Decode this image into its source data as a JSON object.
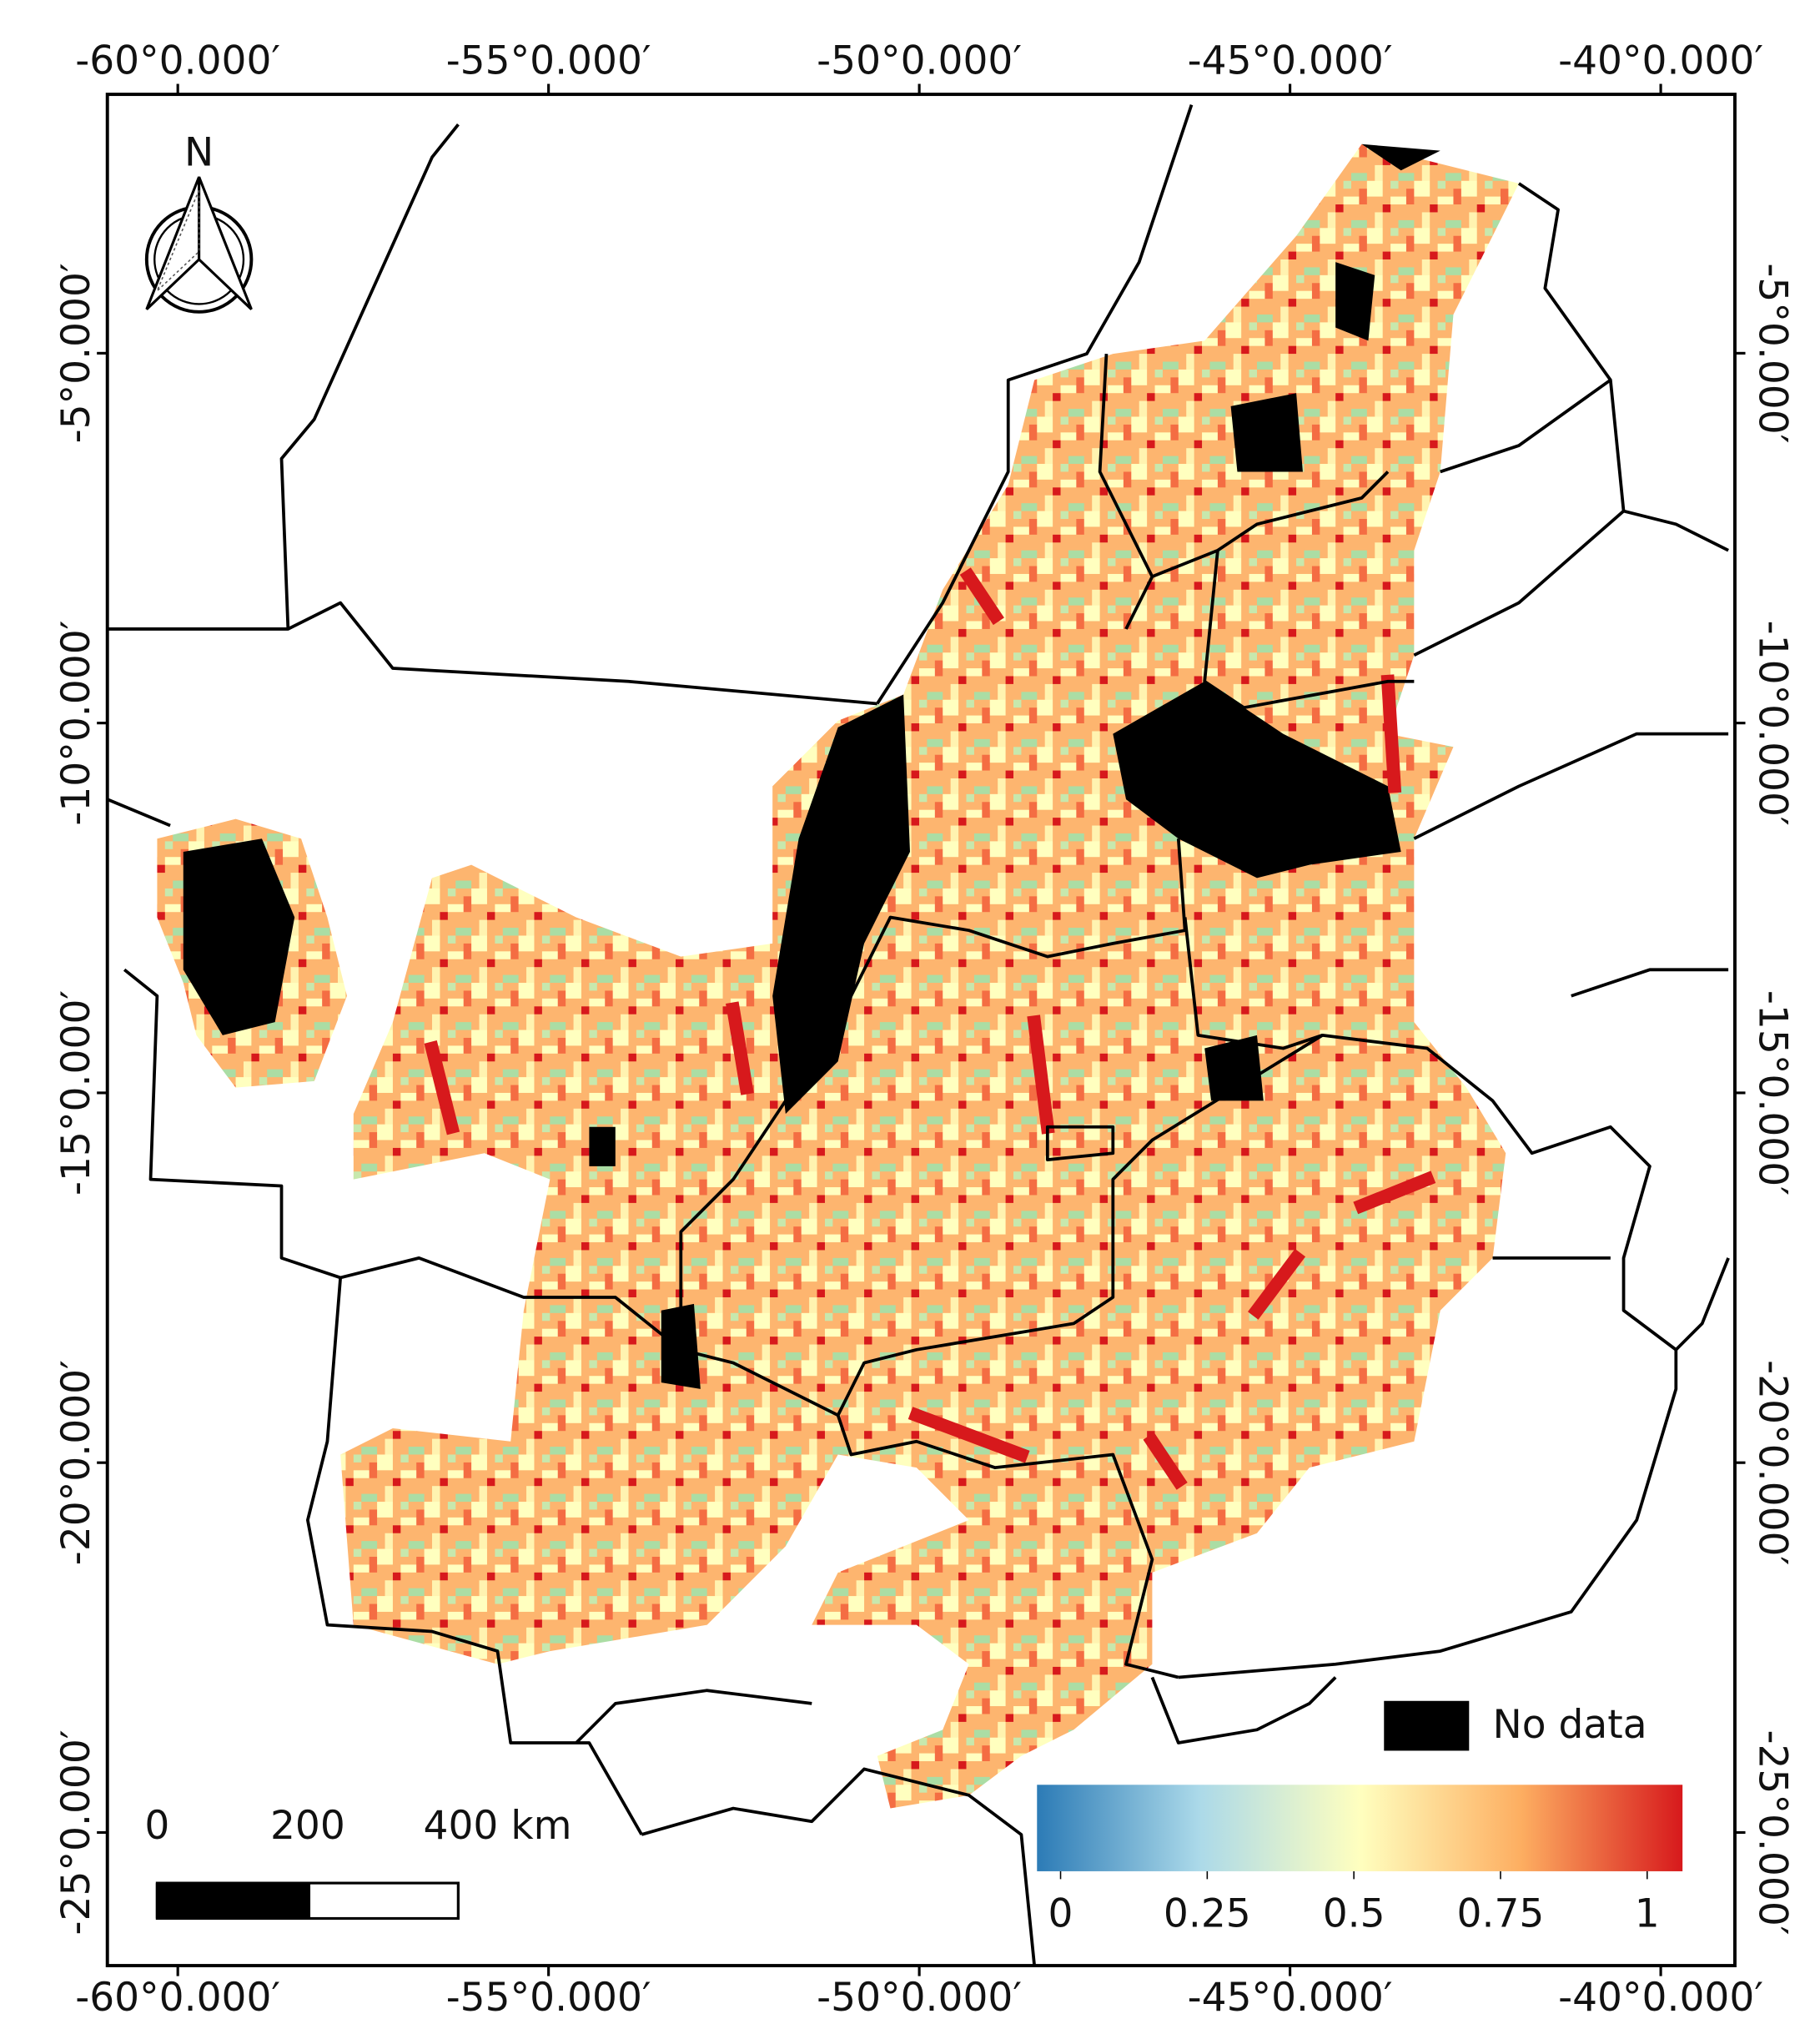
{
  "map": {
    "xlim": [
      -60.95,
      -39.0
    ],
    "ylim": [
      -26.8,
      -1.5
    ],
    "xticks": [
      {
        "value": -60,
        "label": "-60°0.000′"
      },
      {
        "value": -55,
        "label": "-55°0.000′"
      },
      {
        "value": -50,
        "label": "-50°0.000′"
      },
      {
        "value": -45,
        "label": "-45°0.000′"
      },
      {
        "value": -40,
        "label": "-40°0.000′"
      }
    ],
    "yticks": [
      {
        "value": -5,
        "label": "-5°0.000′"
      },
      {
        "value": -10,
        "label": "-10°0.000′"
      },
      {
        "value": -15,
        "label": "-15°0.000′"
      },
      {
        "value": -20,
        "label": "-20°0.000′"
      },
      {
        "value": -25,
        "label": "-25°0.000′"
      }
    ],
    "north": "N",
    "scalebar": {
      "lim": [
        0,
        400
      ],
      "ticks": [
        0,
        200,
        {
          "value": 400,
          "label": "400 km"
        }
      ]
    },
    "nodata_label": "No data",
    "colorbar": {
      "lim": [
        0,
        1
      ],
      "ticks": [
        0,
        0.25,
        0.5,
        0.75,
        1
      ],
      "colors": [
        "#2c7bb6",
        "#abd9e9",
        "#ffffbf",
        "#fdae61",
        "#d7191c"
      ]
    }
  }
}
